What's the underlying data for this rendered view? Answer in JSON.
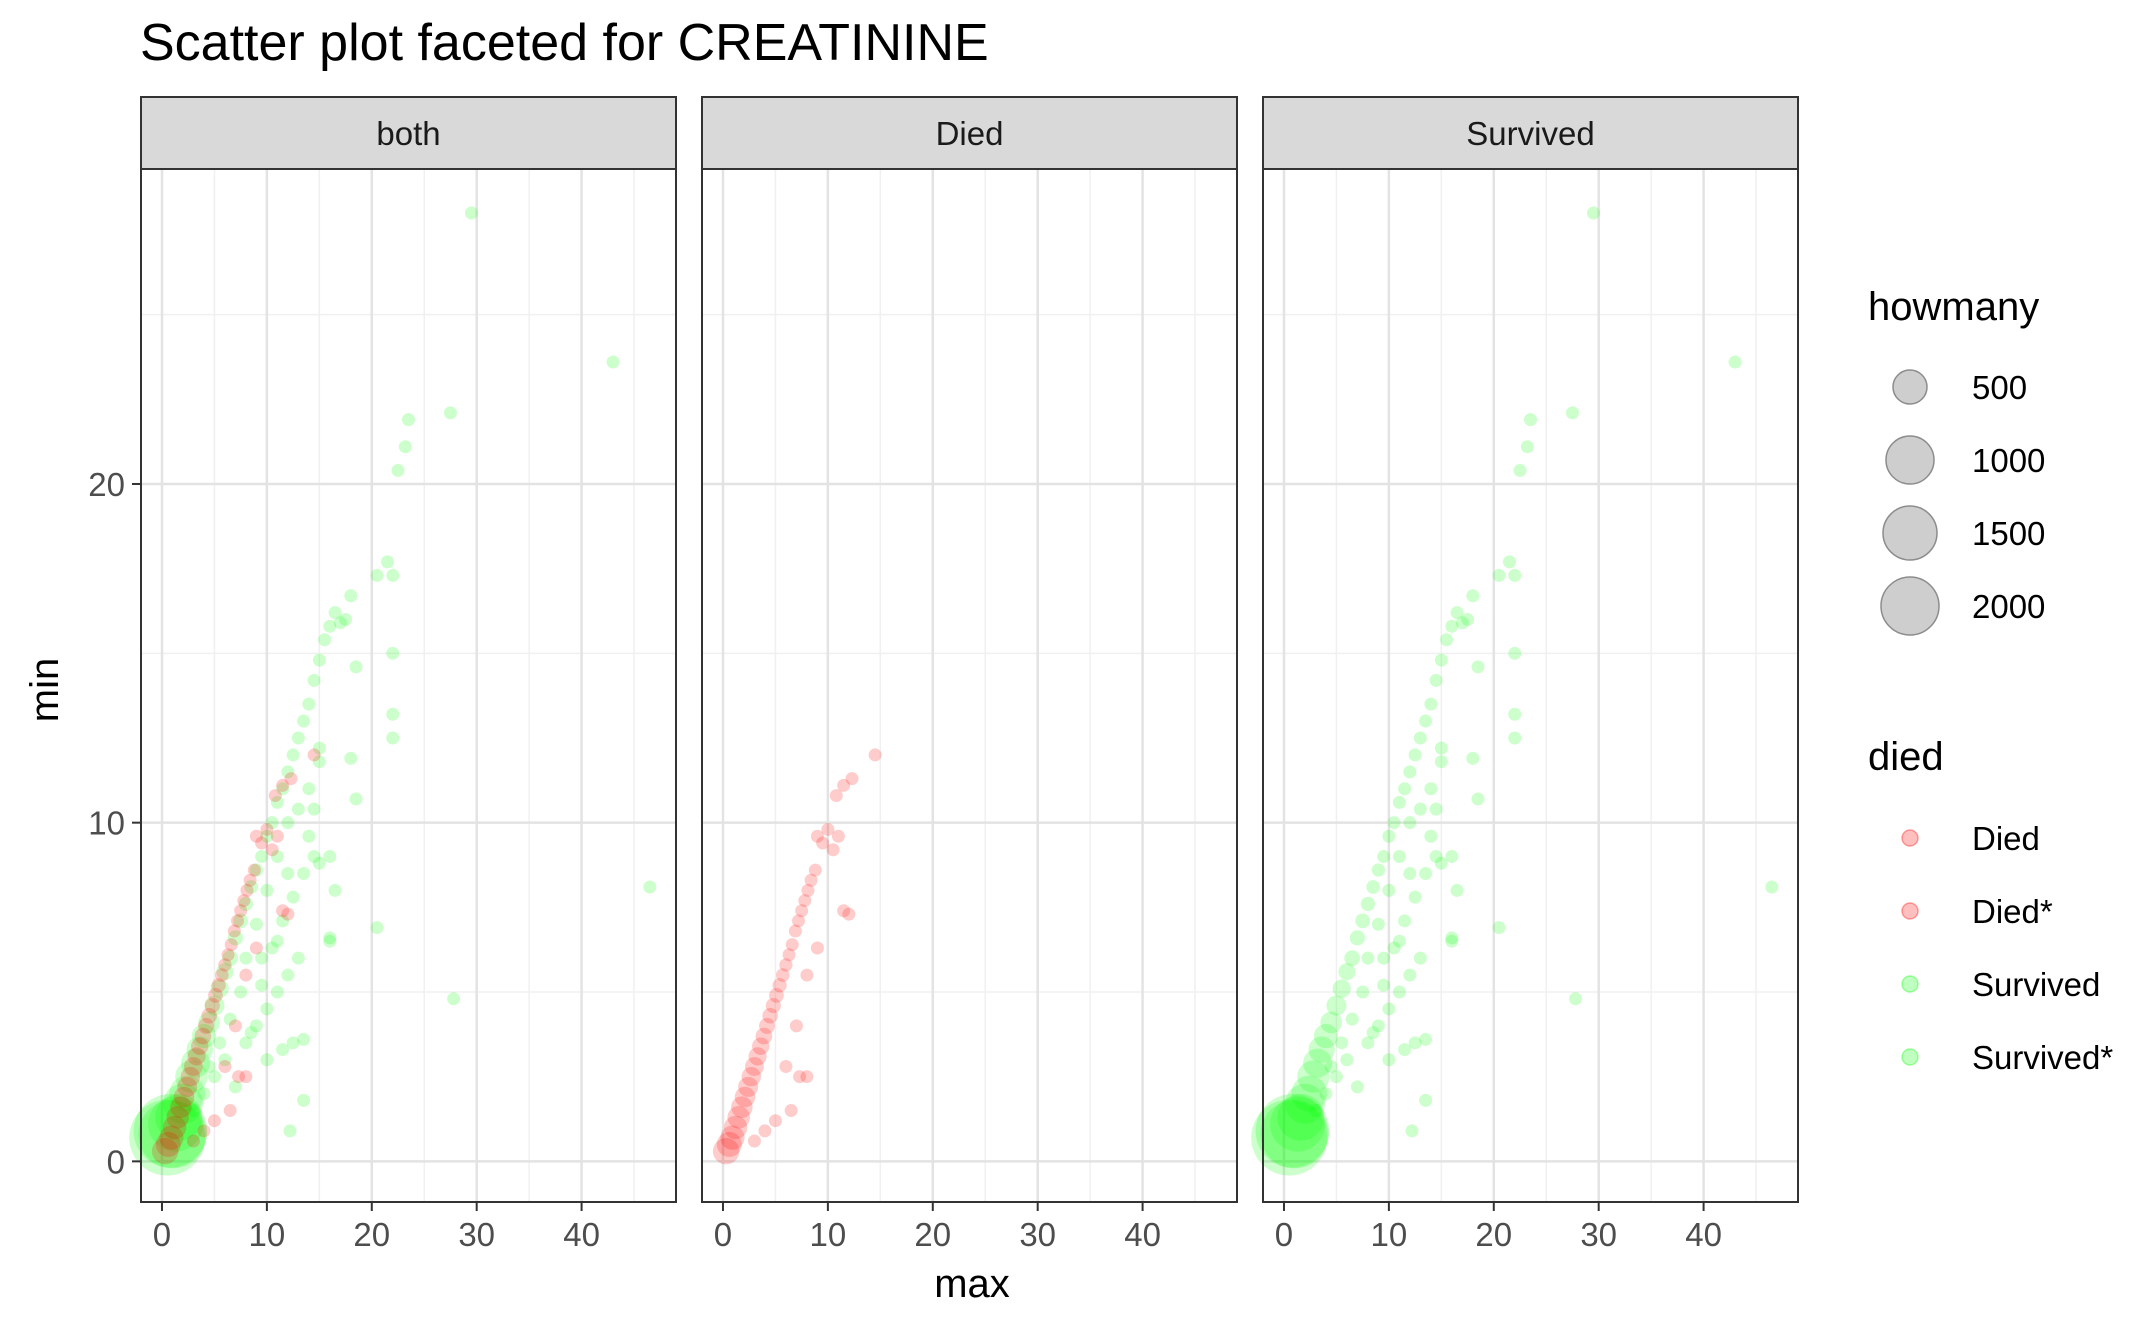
{
  "chart_data": {
    "type": "scatter",
    "title": "Scatter plot faceted for CREATININE",
    "xlabel": "max",
    "ylabel": "min",
    "xlim": [
      -2,
      49
    ],
    "ylim": [
      -1.2,
      29.3
    ],
    "x_ticks": [
      0,
      10,
      20,
      30,
      40
    ],
    "y_ticks": [
      0,
      10,
      20
    ],
    "grid": true,
    "facets": [
      {
        "label": "both",
        "series": [
          "Survived",
          "Died"
        ]
      },
      {
        "label": "Died",
        "series": [
          "Died"
        ]
      },
      {
        "label": "Survived",
        "series": [
          "Survived"
        ]
      }
    ],
    "colors": {
      "Died": "#ff0000",
      "Survived": "#00ff00",
      "legend_key": "#b3b3b3"
    },
    "size_legend": {
      "title": "howmany",
      "entries": [
        {
          "label": "500",
          "value": 500
        },
        {
          "label": "1000",
          "value": 1000
        },
        {
          "label": "1500",
          "value": 1500
        },
        {
          "label": "2000",
          "value": 2000
        }
      ]
    },
    "color_legend": {
      "title": "died",
      "entries": [
        {
          "label": "Died",
          "color": "#ff0000"
        },
        {
          "label": "Died*",
          "color": "#ff0000"
        },
        {
          "label": "Survived",
          "color": "#00ff00"
        },
        {
          "label": "Survived*",
          "color": "#00ff00"
        }
      ]
    },
    "series": [
      {
        "name": "Survived",
        "color": "#00ff00",
        "points": [
          [
            0.5,
            0.7,
            2300
          ],
          [
            0.8,
            0.9,
            1800
          ],
          [
            1.0,
            0.8,
            1500
          ],
          [
            1.3,
            1.1,
            900
          ],
          [
            1.6,
            1.3,
            600
          ],
          [
            2.0,
            1.7,
            400
          ],
          [
            2.4,
            2.0,
            300
          ],
          [
            2.8,
            2.5,
            220
          ],
          [
            3.2,
            2.9,
            160
          ],
          [
            3.6,
            3.3,
            120
          ],
          [
            4.0,
            3.7,
            90
          ],
          [
            4.5,
            4.1,
            60
          ],
          [
            5.0,
            4.6,
            45
          ],
          [
            5.5,
            5.1,
            30
          ],
          [
            6.0,
            5.6,
            22
          ],
          [
            6.5,
            6.0,
            15
          ],
          [
            7.0,
            6.6,
            12
          ],
          [
            7.5,
            7.1,
            10
          ],
          [
            8.0,
            7.6,
            8
          ],
          [
            8.5,
            8.1,
            6
          ],
          [
            9.0,
            8.6,
            5
          ],
          [
            9.5,
            9.0,
            4
          ],
          [
            10.0,
            9.6,
            3
          ],
          [
            10.5,
            10.0,
            2
          ],
          [
            11.0,
            10.6,
            2
          ],
          [
            11.5,
            11.0,
            1
          ],
          [
            12.0,
            11.5,
            1
          ],
          [
            12.5,
            12.0,
            1
          ],
          [
            13.0,
            12.5,
            1
          ],
          [
            13.5,
            13.0,
            1
          ],
          [
            14.0,
            13.5,
            1
          ],
          [
            14.5,
            14.2,
            1
          ],
          [
            15.0,
            14.8,
            1
          ],
          [
            15.5,
            15.4,
            1
          ],
          [
            16.0,
            15.8,
            1
          ],
          [
            16.5,
            16.2,
            1
          ],
          [
            17.0,
            15.9,
            1
          ],
          [
            18.0,
            16.7,
            1
          ],
          [
            17.5,
            16.0,
            1
          ],
          [
            3.0,
            1.5,
            1
          ],
          [
            4.0,
            2.0,
            1
          ],
          [
            5.0,
            2.5,
            1
          ],
          [
            6.0,
            3.0,
            1
          ],
          [
            7.0,
            2.2,
            1
          ],
          [
            8.0,
            3.5,
            1
          ],
          [
            9.0,
            4.0,
            1
          ],
          [
            10.0,
            4.5,
            1
          ],
          [
            11.0,
            5.0,
            1
          ],
          [
            12.0,
            5.5,
            1
          ],
          [
            13.0,
            6.0,
            1
          ],
          [
            12.5,
            3.5,
            1
          ],
          [
            13.5,
            3.6,
            1
          ],
          [
            11.5,
            3.3,
            1
          ],
          [
            10.0,
            3.0,
            1
          ],
          [
            8.5,
            3.8,
            1
          ],
          [
            9.5,
            5.2,
            1
          ],
          [
            10.5,
            6.3,
            1
          ],
          [
            11.5,
            7.1,
            1
          ],
          [
            12.5,
            7.8,
            1
          ],
          [
            13.5,
            8.5,
            1
          ],
          [
            14.5,
            9.0,
            1
          ],
          [
            15.0,
            8.8,
            1
          ],
          [
            14.0,
            9.6,
            1
          ],
          [
            13.0,
            10.4,
            1
          ],
          [
            14.0,
            11.0,
            1
          ],
          [
            15.0,
            11.8,
            1
          ],
          [
            16.0,
            6.6,
            1
          ],
          [
            16.0,
            6.5,
            1
          ],
          [
            16.0,
            9.0,
            1
          ],
          [
            16.5,
            8.0,
            1
          ],
          [
            14.5,
            10.4,
            1
          ],
          [
            15.0,
            12.2,
            1
          ],
          [
            13.5,
            1.8,
            1
          ],
          [
            12.2,
            0.9,
            1
          ],
          [
            18.0,
            11.9,
            1
          ],
          [
            18.5,
            10.7,
            1
          ],
          [
            18.5,
            14.6,
            1
          ],
          [
            20.5,
            6.9,
            1
          ],
          [
            20.5,
            17.3,
            1
          ],
          [
            21.5,
            17.7,
            1
          ],
          [
            22.0,
            17.3,
            1
          ],
          [
            22.0,
            15.0,
            1
          ],
          [
            22.0,
            13.2,
            1
          ],
          [
            22.0,
            12.5,
            1
          ],
          [
            22.5,
            20.4,
            1
          ],
          [
            23.2,
            21.1,
            1
          ],
          [
            23.5,
            21.9,
            1
          ],
          [
            27.5,
            22.1,
            1
          ],
          [
            27.8,
            4.8,
            1
          ],
          [
            29.5,
            28.0,
            1
          ],
          [
            43.0,
            23.6,
            1
          ],
          [
            46.5,
            8.1,
            1
          ],
          [
            7.5,
            5.0,
            1
          ],
          [
            6.5,
            4.2,
            1
          ],
          [
            5.5,
            3.5,
            1
          ],
          [
            4.5,
            2.8,
            1
          ],
          [
            8.0,
            6.0,
            1
          ],
          [
            9.0,
            7.0,
            1
          ],
          [
            10.0,
            8.0,
            1
          ],
          [
            11.0,
            9.0,
            1
          ],
          [
            12.0,
            10.0,
            1
          ],
          [
            12.0,
            8.5,
            1
          ],
          [
            11.0,
            6.5,
            1
          ],
          [
            9.5,
            6.0,
            1
          ]
        ]
      },
      {
        "name": "Died",
        "color": "#ff0000",
        "points": [
          [
            0.3,
            0.3,
            120
          ],
          [
            0.6,
            0.5,
            100
          ],
          [
            0.9,
            0.7,
            90
          ],
          [
            1.2,
            1.0,
            80
          ],
          [
            1.5,
            1.3,
            70
          ],
          [
            1.8,
            1.6,
            60
          ],
          [
            2.1,
            1.9,
            50
          ],
          [
            2.4,
            2.2,
            45
          ],
          [
            2.7,
            2.5,
            40
          ],
          [
            3.0,
            2.8,
            35
          ],
          [
            3.3,
            3.1,
            30
          ],
          [
            3.6,
            3.4,
            25
          ],
          [
            3.9,
            3.7,
            20
          ],
          [
            4.2,
            4.0,
            16
          ],
          [
            4.5,
            4.3,
            14
          ],
          [
            4.8,
            4.6,
            12
          ],
          [
            5.1,
            4.9,
            10
          ],
          [
            5.4,
            5.2,
            8
          ],
          [
            5.7,
            5.5,
            6
          ],
          [
            6.0,
            5.8,
            5
          ],
          [
            6.3,
            6.1,
            4
          ],
          [
            6.6,
            6.4,
            3
          ],
          [
            6.9,
            6.8,
            2
          ],
          [
            7.2,
            7.1,
            2
          ],
          [
            7.5,
            7.4,
            1
          ],
          [
            7.8,
            7.7,
            1
          ],
          [
            8.1,
            8.0,
            1
          ],
          [
            8.4,
            8.3,
            1
          ],
          [
            8.8,
            8.6,
            1
          ],
          [
            9.0,
            9.6,
            1
          ],
          [
            9.5,
            9.4,
            1
          ],
          [
            10.0,
            9.8,
            1
          ],
          [
            10.5,
            9.2,
            1
          ],
          [
            11.0,
            9.6,
            1
          ],
          [
            10.8,
            10.8,
            1
          ],
          [
            11.5,
            11.1,
            1
          ],
          [
            12.3,
            11.3,
            1
          ],
          [
            14.5,
            12.0,
            1
          ],
          [
            11.5,
            7.4,
            1
          ],
          [
            12.0,
            7.3,
            1
          ],
          [
            7.3,
            2.5,
            1
          ],
          [
            8.0,
            2.5,
            1
          ],
          [
            6.5,
            1.5,
            1
          ],
          [
            5.0,
            1.2,
            1
          ],
          [
            4.0,
            0.9,
            1
          ],
          [
            3.0,
            0.6,
            1
          ],
          [
            6.0,
            2.8,
            1
          ],
          [
            7.0,
            4.0,
            1
          ],
          [
            8.0,
            5.5,
            1
          ],
          [
            9.0,
            6.3,
            1
          ]
        ]
      }
    ]
  }
}
